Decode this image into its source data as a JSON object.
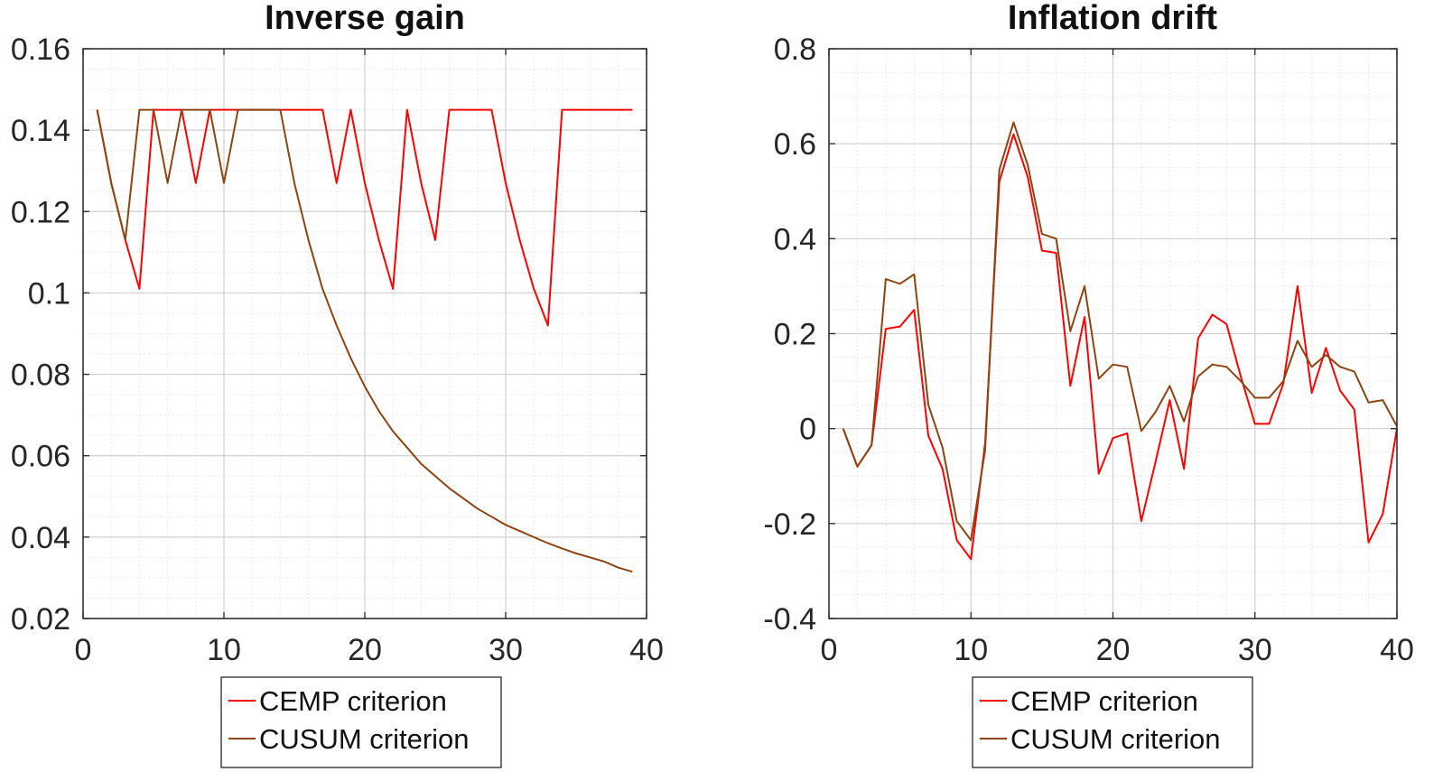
{
  "chart_data": [
    {
      "type": "line",
      "title": "Inverse gain",
      "xlabel": "",
      "ylabel": "",
      "xlim": [
        0,
        40
      ],
      "ylim": [
        0.02,
        0.16
      ],
      "xticks": [
        0,
        10,
        20,
        30,
        40
      ],
      "yticks": [
        0.02,
        0.04,
        0.06,
        0.08,
        0.1,
        0.12,
        0.14,
        0.16
      ],
      "xtick_labels": [
        "0",
        "10",
        "20",
        "30",
        "40"
      ],
      "ytick_labels": [
        "0.02",
        "0.04",
        "0.06",
        "0.08",
        "0.1",
        "0.12",
        "0.14",
        "0.16"
      ],
      "grid": true,
      "minor_grid": true,
      "legend_position": "below",
      "x": [
        1,
        2,
        3,
        4,
        5,
        6,
        7,
        8,
        9,
        10,
        11,
        12,
        13,
        14,
        15,
        16,
        17,
        18,
        19,
        20,
        21,
        22,
        23,
        24,
        25,
        26,
        27,
        28,
        29,
        30,
        31,
        32,
        33,
        34,
        35,
        36,
        37,
        38,
        39
      ],
      "series": [
        {
          "name": "CEMP criterion",
          "color": "#ff0000",
          "values": [
            0.145,
            0.127,
            0.113,
            0.101,
            0.145,
            0.145,
            0.145,
            0.127,
            0.145,
            0.145,
            0.145,
            0.145,
            0.145,
            0.145,
            0.145,
            0.145,
            0.145,
            0.127,
            0.145,
            0.127,
            0.113,
            0.101,
            0.145,
            0.127,
            0.113,
            0.145,
            0.145,
            0.145,
            0.145,
            0.127,
            0.113,
            0.101,
            0.092,
            0.145,
            0.145,
            0.145,
            0.145,
            0.145,
            0.145
          ]
        },
        {
          "name": "CUSUM criterion",
          "color": "#8b4513",
          "values": [
            0.145,
            0.127,
            0.113,
            0.145,
            0.145,
            0.127,
            0.145,
            0.145,
            0.145,
            0.127,
            0.145,
            0.145,
            0.145,
            0.145,
            0.127,
            0.113,
            0.101,
            0.092,
            0.084,
            0.077,
            0.071,
            0.066,
            0.062,
            0.058,
            0.055,
            0.052,
            0.0495,
            0.047,
            0.045,
            0.043,
            0.0415,
            0.04,
            0.0385,
            0.0372,
            0.036,
            0.035,
            0.034,
            0.0325,
            0.0315
          ]
        }
      ]
    },
    {
      "type": "line",
      "title": "Inflation drift",
      "xlabel": "",
      "ylabel": "",
      "xlim": [
        0,
        40
      ],
      "ylim": [
        -0.4,
        0.8
      ],
      "xticks": [
        0,
        10,
        20,
        30,
        40
      ],
      "yticks": [
        -0.4,
        -0.2,
        0,
        0.2,
        0.4,
        0.6,
        0.8
      ],
      "xtick_labels": [
        "0",
        "10",
        "20",
        "30",
        "40"
      ],
      "ytick_labels": [
        "-0.4",
        "-0.2",
        "0",
        "0.2",
        "0.4",
        "0.6",
        "0.8"
      ],
      "grid": true,
      "minor_grid": true,
      "legend_position": "below",
      "x": [
        1,
        2,
        3,
        4,
        5,
        6,
        7,
        8,
        9,
        10,
        11,
        12,
        13,
        14,
        15,
        16,
        17,
        18,
        19,
        20,
        21,
        22,
        23,
        24,
        25,
        26,
        27,
        28,
        29,
        30,
        31,
        32,
        33,
        34,
        35,
        36,
        37,
        38,
        39,
        40
      ],
      "series": [
        {
          "name": "CEMP criterion",
          "color": "#ff0000",
          "values": [
            0,
            -0.08,
            -0.035,
            0.21,
            0.215,
            0.25,
            -0.015,
            -0.085,
            -0.235,
            -0.275,
            -0.03,
            0.52,
            0.62,
            0.53,
            0.375,
            0.37,
            0.09,
            0.235,
            -0.095,
            -0.02,
            -0.01,
            -0.195,
            -0.07,
            0.06,
            -0.085,
            0.19,
            0.24,
            0.22,
            0.11,
            0.01,
            0.01,
            0.095,
            0.3,
            0.075,
            0.17,
            0.08,
            0.04,
            -0.24,
            -0.18,
            0
          ]
        },
        {
          "name": "CUSUM criterion",
          "color": "#8b4513",
          "values": [
            0,
            -0.08,
            -0.035,
            0.315,
            0.305,
            0.325,
            0.05,
            -0.04,
            -0.195,
            -0.235,
            -0.045,
            0.545,
            0.645,
            0.555,
            0.41,
            0.4,
            0.205,
            0.3,
            0.105,
            0.135,
            0.13,
            -0.005,
            0.035,
            0.09,
            0.015,
            0.11,
            0.135,
            0.13,
            0.1,
            0.065,
            0.065,
            0.1,
            0.185,
            0.13,
            0.155,
            0.13,
            0.12,
            0.055,
            0.06,
            0.005
          ]
        }
      ]
    }
  ]
}
